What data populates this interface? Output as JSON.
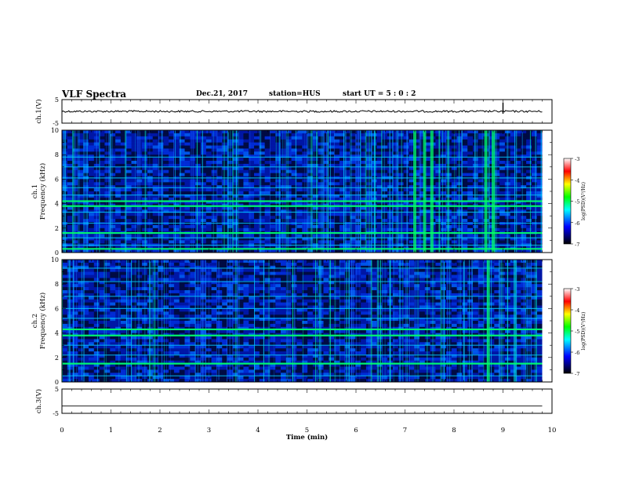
{
  "header": {
    "title": "VLF Spectra",
    "date": "Dec.21, 2017",
    "station": "station=HUS",
    "start_ut": "start  UT =  5 : 0  : 2"
  },
  "colors": {
    "trace": "#000000",
    "spectrogram_background": "#00008b",
    "colormap": [
      "#000000",
      "#0000ff",
      "#00ffff",
      "#00ff00",
      "#ffff00",
      "#ff0000",
      "#ffffff"
    ]
  },
  "chart_data": [
    {
      "type": "line",
      "panel": "ch1-waveform",
      "ylabel": "ch.1(V)",
      "ylim": [
        -5,
        5
      ],
      "y_ticks": [
        "5",
        "-5"
      ],
      "xlim": [
        0,
        10
      ],
      "baseline_v": 0,
      "notable_spike_min": 9.0
    },
    {
      "type": "heatmap",
      "panel": "ch1-spectrogram",
      "ylabel": "ch.1\nFrequency (kHz)",
      "ylim": [
        0,
        10
      ],
      "y_ticks": [
        "0",
        "2",
        "4",
        "6",
        "8",
        "10"
      ],
      "xlim": [
        0,
        10
      ],
      "data_extent_min": 9.8,
      "horizontal_lines_khz": [
        0.3,
        0.6,
        1.2,
        1.6,
        2.4,
        3.3,
        3.8,
        4.2,
        4.7,
        5.3,
        6.1,
        7.0,
        7.8
      ],
      "strong_lines_khz": [
        0.3,
        1.6,
        3.8,
        4.2
      ],
      "broadband_bursts_min": [
        7.2,
        7.4,
        7.55,
        8.65,
        8.8
      ],
      "colorbar": {
        "label": "log(PSD)(V²/Hz)",
        "range": [
          -7,
          -3
        ],
        "ticks": [
          "-3",
          "-4",
          "-5",
          "-6",
          "-7"
        ]
      }
    },
    {
      "type": "heatmap",
      "panel": "ch2-spectrogram",
      "ylabel": "ch.2\nFrequency (kHz)",
      "ylim": [
        0,
        10
      ],
      "y_ticks": [
        "0",
        "2",
        "4",
        "6",
        "8",
        "10"
      ],
      "xlim": [
        0,
        10
      ],
      "data_extent_min": 9.8,
      "horizontal_lines_khz": [
        0.5,
        1.5,
        2.2,
        3.0,
        3.8,
        4.3,
        5.2,
        6.0,
        7.0,
        8.2,
        9.3
      ],
      "strong_lines_khz": [
        3.8,
        4.3,
        1.5
      ],
      "broadband_bursts_min": [
        8.7
      ],
      "colorbar": {
        "label": "log(PSD)(V²/Hz)",
        "range": [
          -7,
          -3
        ],
        "ticks": [
          "-3",
          "-4",
          "-5",
          "-6",
          "-7"
        ]
      }
    },
    {
      "type": "line",
      "panel": "ch3-waveform",
      "ylabel": "ch.3(V)",
      "ylim": [
        -5,
        5
      ],
      "y_ticks": [
        "5",
        "-5"
      ],
      "xlim": [
        0,
        10
      ],
      "x_ticks": [
        "0",
        "1",
        "2",
        "3",
        "4",
        "5",
        "6",
        "7",
        "8",
        "9",
        "10"
      ],
      "xlabel": "Time  (min)",
      "baseline_v": -2
    }
  ]
}
